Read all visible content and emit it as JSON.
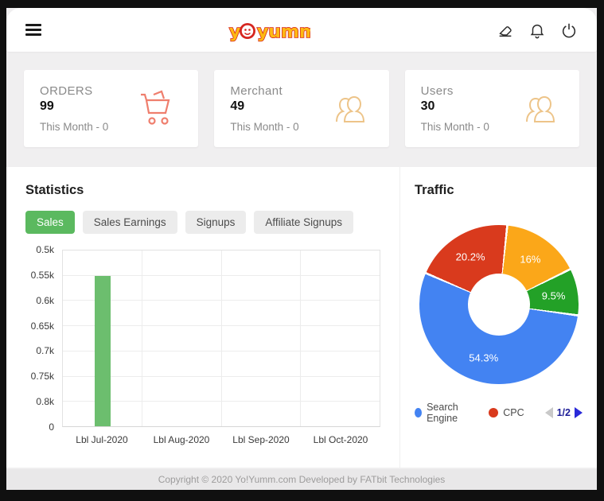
{
  "header": {
    "logo": {
      "part1": "y",
      "part2": "yumm",
      "red": "#d6251f",
      "yellow": "#fdb913"
    },
    "icons": [
      "eraser-icon",
      "bell-icon",
      "power-icon"
    ]
  },
  "stats_cards": [
    {
      "title": "ORDERS",
      "value": "99",
      "subtitle": "This Month - 0",
      "icon": "cart-icon",
      "icon_color": "#ef7e6d"
    },
    {
      "title": "Merchant",
      "value": "49",
      "subtitle": "This Month - 0",
      "icon": "users-icon",
      "icon_color": "#edc489"
    },
    {
      "title": "Users",
      "value": "30",
      "subtitle": "This Month - 0",
      "icon": "users-icon",
      "icon_color": "#edc489"
    }
  ],
  "statistics": {
    "title": "Statistics",
    "tabs": [
      {
        "label": "Sales",
        "active": true
      },
      {
        "label": "Sales Earnings",
        "active": false
      },
      {
        "label": "Signups",
        "active": false
      },
      {
        "label": "Affiliate Signups",
        "active": false
      }
    ]
  },
  "traffic": {
    "title": "Traffic",
    "legend": [
      {
        "label": "Search Engine",
        "color": "#4383f2"
      },
      {
        "label": "CPC",
        "color": "#d93a1d"
      }
    ],
    "pagination": {
      "current": "1/2"
    }
  },
  "chart_data": [
    {
      "type": "bar",
      "title": "Statistics - Sales",
      "categories": [
        "Lbl Jul-2020",
        "Lbl Aug-2020",
        "Lbl Sep-2020",
        "Lbl Oct-2020"
      ],
      "series": [
        {
          "name": "Sales",
          "values": [
            550,
            0,
            0,
            0
          ]
        }
      ],
      "y_tick_labels": [
        "0.5k",
        "0.55k",
        "0.6k",
        "0.65k",
        "0.7k",
        "0.75k",
        "0.8k",
        "0"
      ],
      "bar_color": "#6cbe6e",
      "grid": true,
      "legend_position": "none"
    },
    {
      "type": "pie",
      "donut": true,
      "title": "Traffic",
      "start_angle_deg": 6,
      "slices": [
        {
          "label": "",
          "display": "16%",
          "value": 16,
          "color": "#fba719"
        },
        {
          "label": "",
          "display": "9.5%",
          "value": 9.5,
          "color": "#23a127"
        },
        {
          "label": "Search Engine",
          "display": "54.3%",
          "value": 54.3,
          "color": "#4383f2"
        },
        {
          "label": "CPC",
          "display": "20.2%",
          "value": 20.2,
          "color": "#d93a1d"
        }
      ],
      "legend_position": "bottom",
      "legend_page": "1/2"
    }
  ],
  "footer": {
    "copyright": "Copyright © 2020 Yo!Yumm.com Developed by FATbit Technologies"
  },
  "colors": {
    "tab_active": "#5bb95f",
    "page_bg": "#f0eff0",
    "footer_bg": "#e9e8e9"
  }
}
